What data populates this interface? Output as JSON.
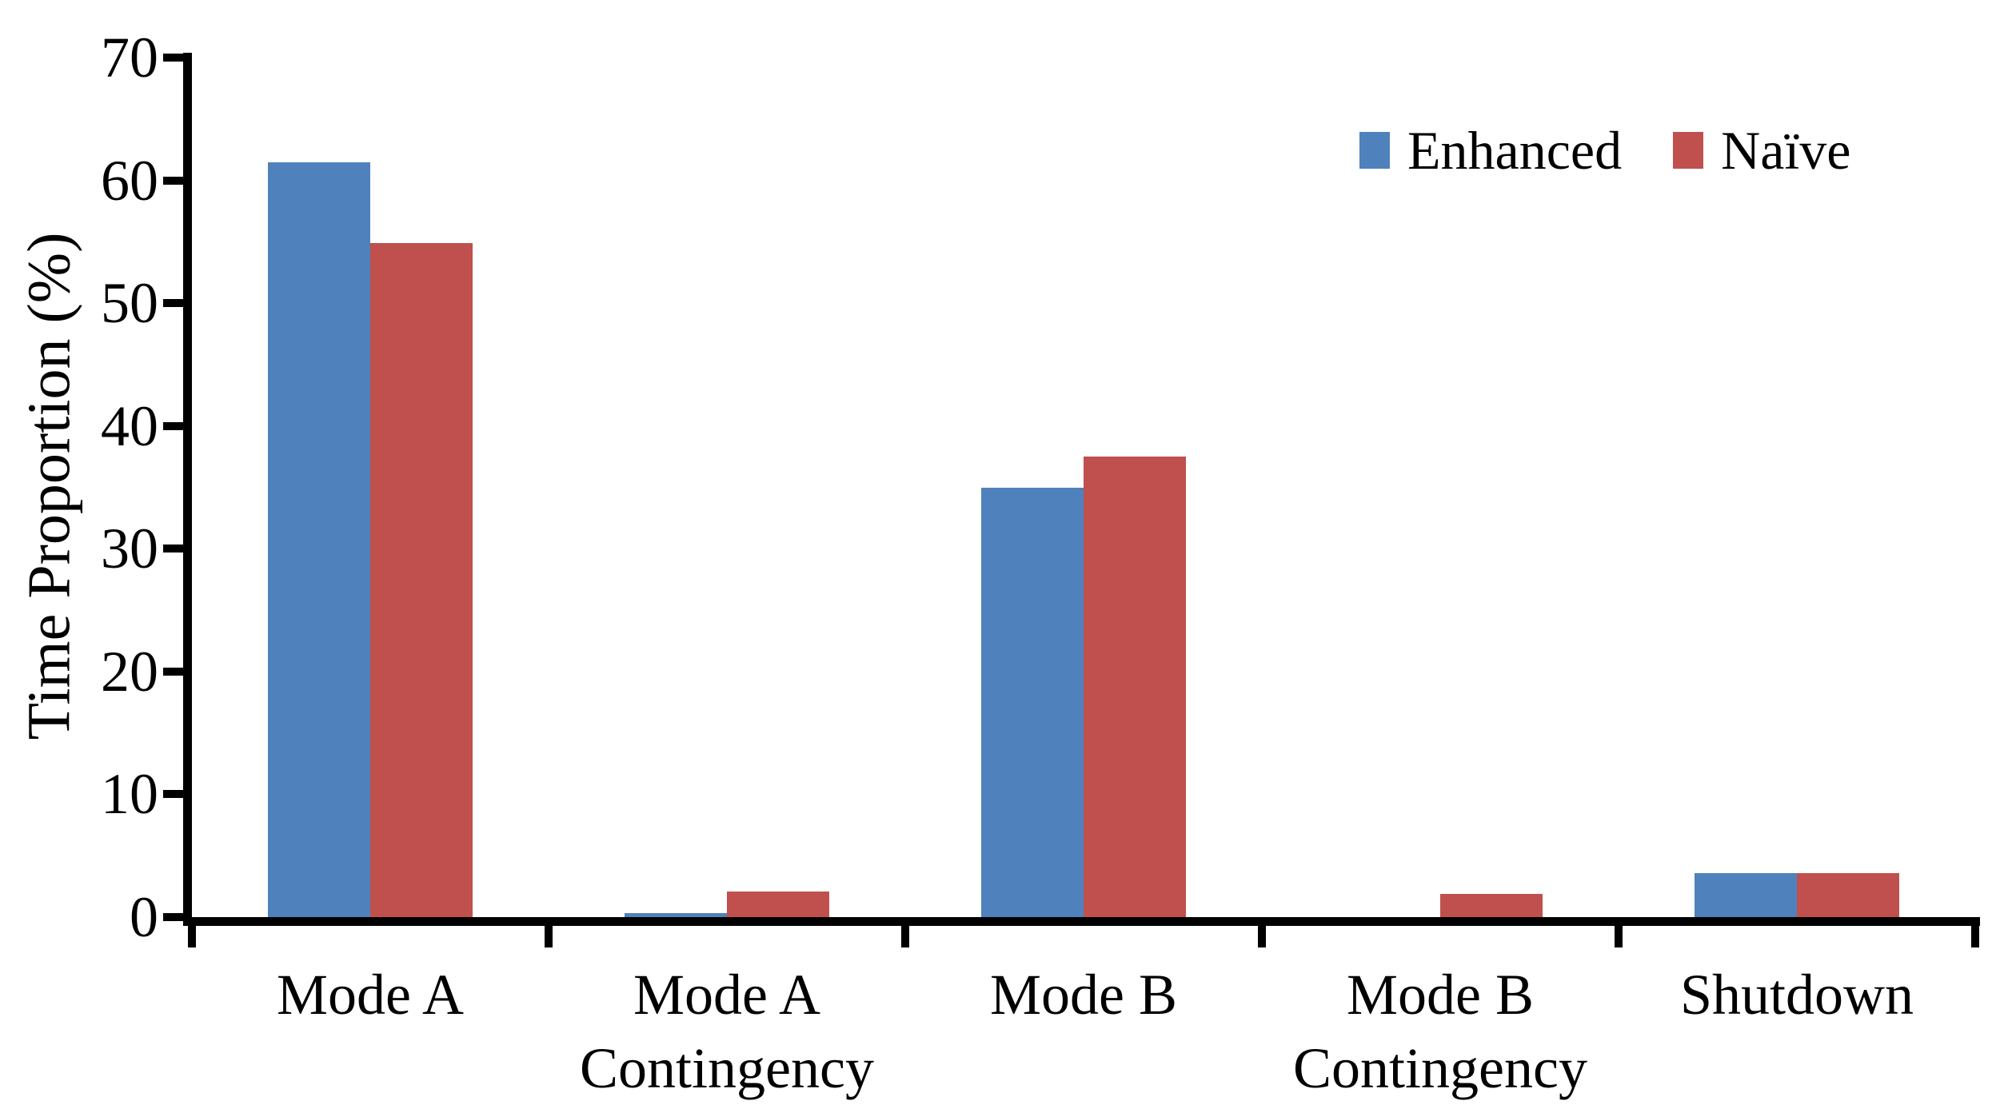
{
  "figure": {
    "background_color": "#ffffff",
    "axis_color": "#000000",
    "text_color": "#000000"
  },
  "chart_data": {
    "type": "bar",
    "title": "",
    "xlabel": "",
    "ylabel": "Time Proportion (%)",
    "ylim": [
      0,
      70
    ],
    "yticks": [
      0,
      10,
      20,
      30,
      40,
      50,
      60,
      70
    ],
    "grid": false,
    "legend_position": "top-right",
    "categories": [
      "Mode A",
      "Mode A\nContingency",
      "Mode B",
      "Mode B\nContingency",
      "Shutdown"
    ],
    "series": [
      {
        "name": "Enhanced",
        "color": "#4F81BD",
        "values": [
          61.5,
          0.3,
          35.0,
          0.0,
          3.6
        ]
      },
      {
        "name": "Naïve",
        "color": "#C0504D",
        "values": [
          54.9,
          2.1,
          37.5,
          1.9,
          3.6
        ]
      }
    ]
  }
}
